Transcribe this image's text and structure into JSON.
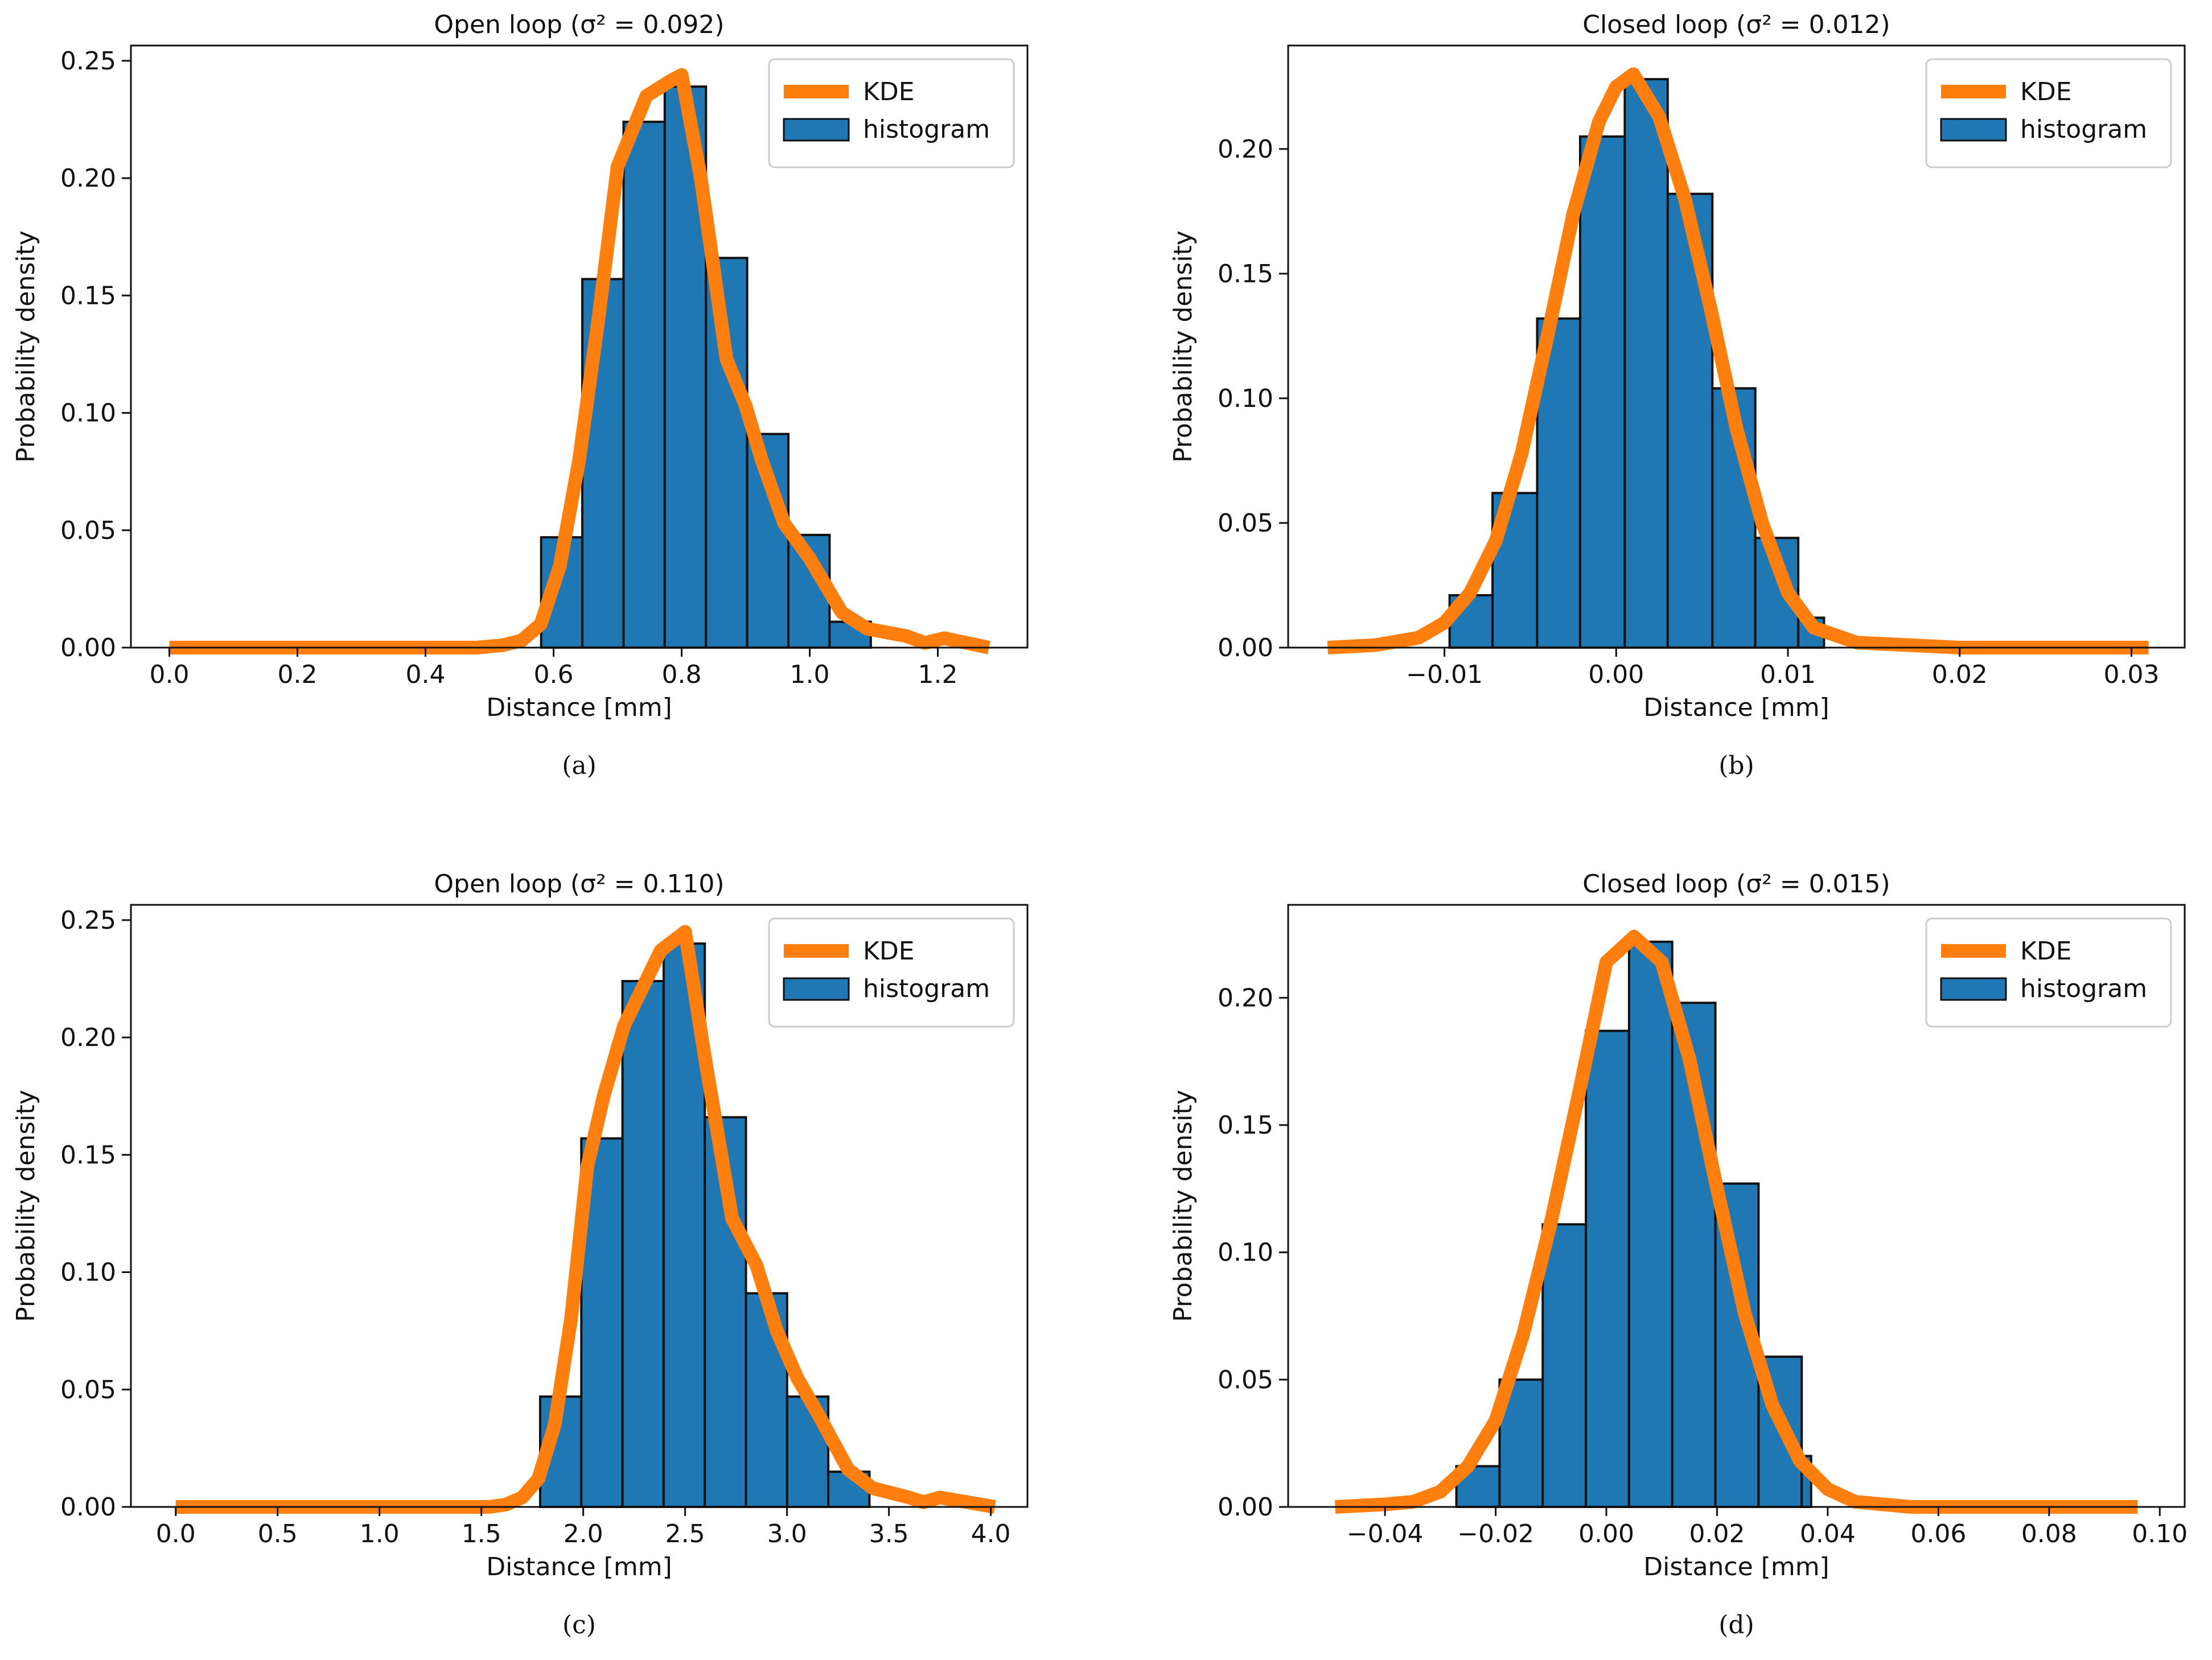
{
  "figure": {
    "colors": {
      "histogram": "#1f77b4",
      "kde": "#ff7f0e",
      "edge": "#111111"
    }
  },
  "chart_data": [
    {
      "panel": "a",
      "type": "bar",
      "title": "Open loop (σ² = 0.092)",
      "caption": "(a)",
      "xlabel": "Distance [mm]",
      "ylabel": "Probability density",
      "xlim": [
        -0.06,
        1.34
      ],
      "ylim": [
        0,
        0.2565
      ],
      "xticks": [
        0.0,
        0.2,
        0.4,
        0.6,
        0.8,
        1.0,
        1.2
      ],
      "xtick_labels": [
        "0.0",
        "0.2",
        "0.4",
        "0.6",
        "0.8",
        "1.0",
        "1.2"
      ],
      "yticks": [
        0.0,
        0.05,
        0.1,
        0.15,
        0.2,
        0.25
      ],
      "ytick_labels": [
        "0.00",
        "0.05",
        "0.10",
        "0.15",
        "0.20",
        "0.25"
      ],
      "legend": {
        "position": "top-right",
        "entries": [
          "KDE",
          "histogram"
        ]
      },
      "histogram": {
        "bin_edges": [
          0.5806,
          0.6449,
          0.7093,
          0.7736,
          0.838,
          0.9023,
          0.9667,
          1.031,
          1.0954
        ],
        "values": [
          0.047,
          0.157,
          0.224,
          0.239,
          0.166,
          0.091,
          0.048,
          0.011
        ]
      },
      "kde": {
        "x": [
          0.0,
          0.48,
          0.52,
          0.55,
          0.58,
          0.61,
          0.64,
          0.67,
          0.7,
          0.745,
          0.78,
          0.8,
          0.83,
          0.87,
          0.9,
          0.925,
          0.96,
          1.0,
          1.05,
          1.09,
          1.15,
          1.18,
          1.21,
          1.28
        ],
        "y": [
          0.0,
          0.0,
          0.001,
          0.003,
          0.01,
          0.035,
          0.08,
          0.14,
          0.205,
          0.235,
          0.241,
          0.244,
          0.2,
          0.123,
          0.103,
          0.08,
          0.053,
          0.038,
          0.015,
          0.008,
          0.005,
          0.002,
          0.004,
          0.0
        ]
      }
    },
    {
      "panel": "b",
      "type": "bar",
      "title": "Closed loop (σ² = 0.012)",
      "caption": "(b)",
      "xlabel": "Distance [mm]",
      "ylabel": "Probability density",
      "xlim": [
        -0.0191,
        0.0331
      ],
      "ylim": [
        0,
        0.2415
      ],
      "xticks": [
        -0.01,
        0.0,
        0.01,
        0.02,
        0.03
      ],
      "xtick_labels": [
        "−0.01",
        "0.00",
        "0.01",
        "0.02",
        "0.03"
      ],
      "yticks": [
        0.0,
        0.05,
        0.1,
        0.15,
        0.2
      ],
      "ytick_labels": [
        "0.00",
        "0.05",
        "0.10",
        "0.15",
        "0.20"
      ],
      "legend": {
        "position": "top-right",
        "entries": [
          "KDE",
          "histogram"
        ]
      },
      "histogram": {
        "bin_edges": [
          -0.0097,
          -0.0072,
          -0.0046,
          -0.0021,
          0.0005,
          0.003,
          0.0056,
          0.0081,
          0.0106,
          0.0121
        ],
        "values": [
          0.021,
          0.062,
          0.132,
          0.205,
          0.228,
          0.182,
          0.104,
          0.044,
          0.012
        ]
      },
      "kde": {
        "x": [
          -0.0168,
          -0.014,
          -0.0115,
          -0.01,
          -0.0085,
          -0.007,
          -0.0055,
          -0.004,
          -0.0025,
          -0.001,
          0.0,
          0.001,
          0.0025,
          0.004,
          0.0055,
          0.007,
          0.0085,
          0.01,
          0.0115,
          0.014,
          0.02,
          0.031
        ],
        "y": [
          0.0,
          0.001,
          0.004,
          0.01,
          0.022,
          0.043,
          0.078,
          0.125,
          0.174,
          0.211,
          0.225,
          0.23,
          0.213,
          0.18,
          0.136,
          0.088,
          0.05,
          0.022,
          0.008,
          0.002,
          0.0,
          0.0
        ]
      }
    },
    {
      "panel": "c",
      "type": "bar",
      "title": "Open loop (σ² = 0.110)",
      "caption": "(c)",
      "xlabel": "Distance [mm]",
      "ylabel": "Probability density",
      "xlim": [
        -0.22,
        4.18
      ],
      "ylim": [
        0,
        0.2565
      ],
      "xticks": [
        0.0,
        0.5,
        1.0,
        1.5,
        2.0,
        2.5,
        3.0,
        3.5,
        4.0
      ],
      "xtick_labels": [
        "0.0",
        "0.5",
        "1.0",
        "1.5",
        "2.0",
        "2.5",
        "3.0",
        "3.5",
        "4.0"
      ],
      "yticks": [
        0.0,
        0.05,
        0.1,
        0.15,
        0.2,
        0.25
      ],
      "ytick_labels": [
        "0.00",
        "0.05",
        "0.10",
        "0.15",
        "0.20",
        "0.25"
      ],
      "legend": {
        "position": "top-right",
        "entries": [
          "KDE",
          "histogram"
        ]
      },
      "histogram": {
        "bin_edges": [
          1.7885,
          1.9905,
          2.1925,
          2.3945,
          2.5965,
          2.7985,
          3.0005,
          3.2025,
          3.4045
        ],
        "values": [
          0.047,
          0.157,
          0.224,
          0.24,
          0.166,
          0.091,
          0.047,
          0.015
        ]
      },
      "kde": {
        "x": [
          0.0,
          1.54,
          1.62,
          1.7,
          1.78,
          1.86,
          1.94,
          2.02,
          2.1,
          2.2,
          2.38,
          2.5,
          2.6,
          2.73,
          2.85,
          2.95,
          3.05,
          3.15,
          3.3,
          3.42,
          3.6,
          3.67,
          3.75,
          4.02
        ],
        "y": [
          0.0,
          0.0,
          0.001,
          0.004,
          0.012,
          0.035,
          0.08,
          0.145,
          0.175,
          0.205,
          0.237,
          0.245,
          0.19,
          0.123,
          0.103,
          0.075,
          0.055,
          0.04,
          0.016,
          0.008,
          0.004,
          0.002,
          0.004,
          0.0
        ]
      }
    },
    {
      "panel": "d",
      "type": "bar",
      "title": "Closed loop (σ² = 0.015)",
      "caption": "(d)",
      "xlabel": "Distance [mm]",
      "ylabel": "Probability density",
      "xlim": [
        -0.0575,
        0.1045
      ],
      "ylim": [
        0,
        0.2365
      ],
      "xticks": [
        -0.04,
        -0.02,
        0.0,
        0.02,
        0.04,
        0.06,
        0.08,
        0.1
      ],
      "xtick_labels": [
        "−0.04",
        "−0.02",
        "0.00",
        "0.02",
        "0.04",
        "0.06",
        "0.08",
        "0.10"
      ],
      "yticks": [
        0.0,
        0.05,
        0.1,
        0.15,
        0.2
      ],
      "ytick_labels": [
        "0.00",
        "0.05",
        "0.10",
        "0.15",
        "0.20"
      ],
      "legend": {
        "position": "top-right",
        "entries": [
          "KDE",
          "histogram"
        ]
      },
      "histogram": {
        "bin_edges": [
          -0.0271,
          -0.0193,
          -0.0115,
          -0.0037,
          0.0041,
          0.0119,
          0.0197,
          0.0275,
          0.0353,
          0.037
        ],
        "values": [
          0.016,
          0.05,
          0.111,
          0.187,
          0.222,
          0.198,
          0.127,
          0.059,
          0.02
        ]
      },
      "kde": {
        "x": [
          -0.049,
          -0.04,
          -0.035,
          -0.03,
          -0.025,
          -0.02,
          -0.015,
          -0.01,
          -0.005,
          0.0,
          0.005,
          0.01,
          0.015,
          0.02,
          0.025,
          0.03,
          0.035,
          0.04,
          0.045,
          0.055,
          0.07,
          0.096
        ],
        "y": [
          0.0,
          0.001,
          0.002,
          0.006,
          0.016,
          0.034,
          0.068,
          0.112,
          0.162,
          0.214,
          0.224,
          0.214,
          0.176,
          0.125,
          0.076,
          0.04,
          0.018,
          0.007,
          0.002,
          0.0,
          0.0,
          0.0
        ]
      }
    }
  ]
}
